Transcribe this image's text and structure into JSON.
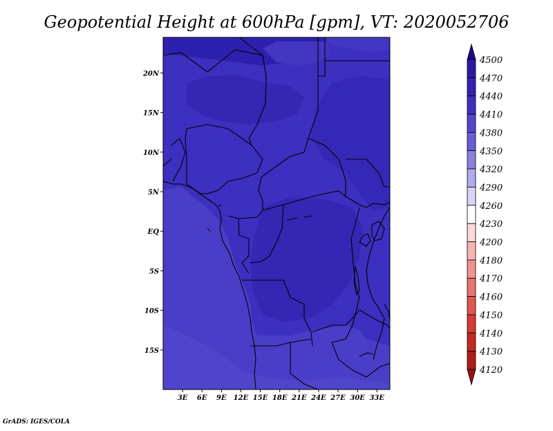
{
  "title": "Geopotential Height at 600hPa [gpm], VT: 2020052706",
  "credit": "GrADS: IGES/COLA",
  "map": {
    "projection": "latlon",
    "lon_range": [
      0,
      35
    ],
    "lat_range": [
      -20,
      24.5
    ],
    "lat_ticks": [
      "20N",
      "15N",
      "10N",
      "5N",
      "EQ",
      "5S",
      "10S",
      "15S"
    ],
    "lat_tick_values": [
      20,
      15,
      10,
      5,
      0,
      -5,
      -10,
      -15
    ],
    "lon_ticks": [
      "3E",
      "6E",
      "9E",
      "12E",
      "15E",
      "18E",
      "21E",
      "24E",
      "27E",
      "30E",
      "33E"
    ],
    "lon_tick_values": [
      3,
      6,
      9,
      12,
      15,
      18,
      21,
      24,
      27,
      30,
      33
    ]
  },
  "colorbar": {
    "levels": [
      "4500",
      "4470",
      "4440",
      "4410",
      "4380",
      "4350",
      "4320",
      "4290",
      "4260",
      "4230",
      "4200",
      "4180",
      "4170",
      "4160",
      "4150",
      "4140",
      "4130",
      "4120"
    ],
    "colors": [
      "#1e0a8c",
      "#2a1aa6",
      "#3322b4",
      "#4030c0",
      "#5446cc",
      "#6a5ed6",
      "#8a80e2",
      "#b0aaee",
      "#d6d4f8",
      "#ffffff",
      "#fcd8d8",
      "#f6b4b2",
      "#ee9490",
      "#e67470",
      "#e05850",
      "#d43c34",
      "#c42a22",
      "#b01e18",
      "#961410"
    ]
  },
  "colors": {
    "field_low": "#4a3ec8",
    "field_mid": "#3d2fbf",
    "field_high": "#3526b4",
    "field_peak": "#2e20ae",
    "boundary": "#000000"
  }
}
